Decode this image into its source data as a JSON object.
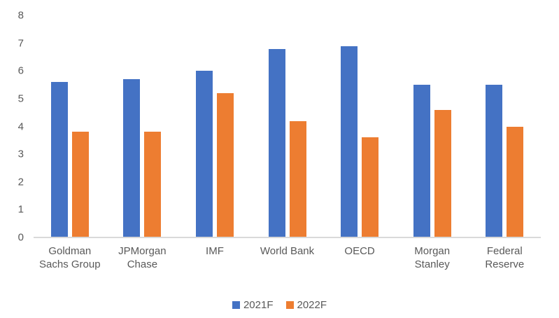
{
  "chart_data": {
    "type": "bar",
    "categories": [
      "Goldman Sachs Group",
      "JPMorgan Chase",
      "IMF",
      "World Bank",
      "OECD",
      "Morgan Stanley",
      "Federal Reserve"
    ],
    "series": [
      {
        "name": "2021F",
        "color": "#4472C4",
        "values": [
          5.6,
          5.7,
          6.0,
          6.8,
          6.9,
          5.5,
          5.5
        ]
      },
      {
        "name": "2022F",
        "color": "#ED7D31",
        "values": [
          3.8,
          3.8,
          5.2,
          4.2,
          3.6,
          4.6,
          4.0
        ]
      }
    ],
    "title": "",
    "xlabel": "",
    "ylabel": "",
    "ylim": [
      0,
      8
    ],
    "yticks": [
      0,
      1,
      2,
      3,
      4,
      5,
      6,
      7,
      8
    ],
    "grid": false,
    "legend_position": "bottom"
  },
  "style": {
    "axis_label_color": "#595959",
    "axis_line_color": "#D9D9D9",
    "background_color": "#FFFFFF"
  }
}
